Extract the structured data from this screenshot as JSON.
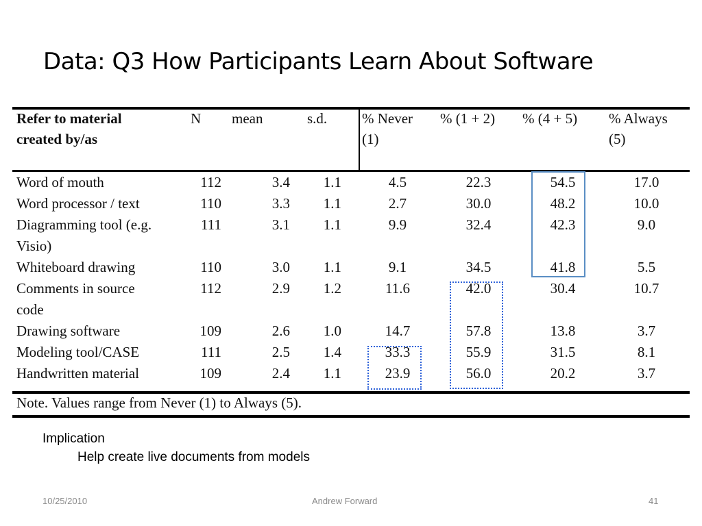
{
  "title": "Data: Q3 How Participants Learn About Software",
  "table": {
    "headers": {
      "material_line1": "Refer to material",
      "material_line2": "created by/as",
      "n": "N",
      "mean": "mean",
      "sd": "s.d.",
      "never_line1": "% Never",
      "never_line2": "(1)",
      "low": "%  (1 + 2)",
      "high": "%  (4 + 5)",
      "always_line1": "% Always",
      "always_line2": "(5)"
    },
    "rows": [
      {
        "label": [
          "Word of mouth"
        ],
        "n": "112",
        "mean": "3.4",
        "sd": "1.1",
        "never": "4.5",
        "low": "22.3",
        "high": "54.5",
        "always": "17.0"
      },
      {
        "label": [
          "Word processor / text"
        ],
        "n": "110",
        "mean": "3.3",
        "sd": "1.1",
        "never": "2.7",
        "low": "30.0",
        "high": "48.2",
        "always": "10.0"
      },
      {
        "label": [
          "Diagramming  tool  (e.g.",
          "Visio)"
        ],
        "n": "111",
        "mean": "3.1",
        "sd": "1.1",
        "never": "9.9",
        "low": "32.4",
        "high": "42.3",
        "always": "9.0"
      },
      {
        "label": [
          "Whiteboard drawing"
        ],
        "n": "110",
        "mean": "3.0",
        "sd": "1.1",
        "never": "9.1",
        "low": "34.5",
        "high": "41.8",
        "always": "5.5"
      },
      {
        "label": [
          "Comments     in     source",
          "code"
        ],
        "n": "112",
        "mean": "2.9",
        "sd": "1.2",
        "never": "11.6",
        "low": "42.0",
        "high": "30.4",
        "always": "10.7"
      },
      {
        "label": [
          "Drawing software"
        ],
        "n": "109",
        "mean": "2.6",
        "sd": "1.0",
        "never": "14.7",
        "low": "57.8",
        "high": "13.8",
        "always": "3.7"
      },
      {
        "label": [
          "Modeling tool/CASE"
        ],
        "n": "111",
        "mean": "2.5",
        "sd": "1.4",
        "never": "33.3",
        "low": "55.9",
        "high": "31.5",
        "always": "8.1"
      },
      {
        "label": [
          "Handwritten material"
        ],
        "n": "109",
        "mean": "2.4",
        "sd": "1.1",
        "never": "23.9",
        "low": "56.0",
        "high": "20.2",
        "always": "3.7"
      }
    ],
    "note": "Note.  Values range from Never (1) to Always (5)."
  },
  "implication": {
    "heading": "Implication",
    "detail": "Help create live documents from models"
  },
  "footer": {
    "date": "10/25/2010",
    "author": "Andrew Forward",
    "page": "41"
  },
  "colors": {
    "solid_box": "#5a8ec4",
    "dotted_box": "#2e62d9"
  }
}
